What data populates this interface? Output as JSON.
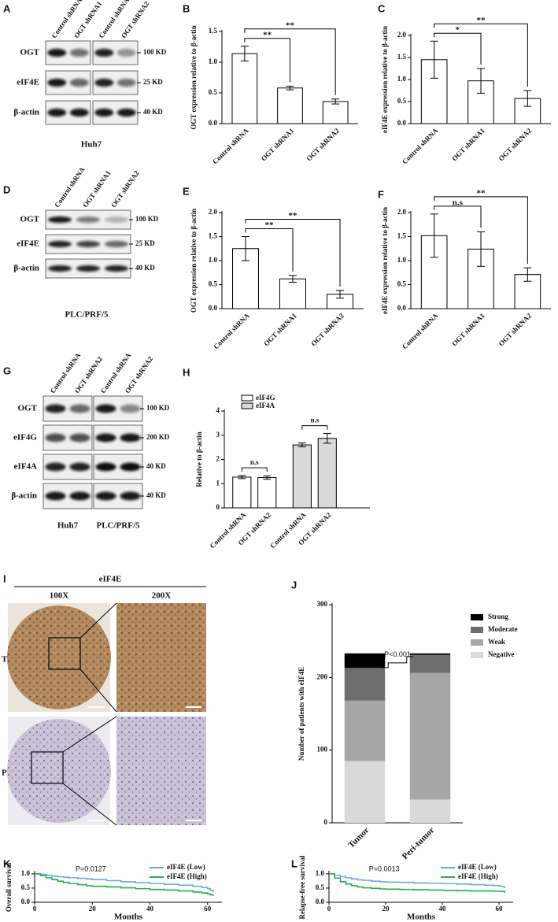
{
  "chart_data": [
    {
      "type": "bar",
      "panel": "B",
      "ylabel": "OGT expression relative to β-actin",
      "categories": [
        "Control shRNA",
        "OGT shRNA1",
        "OGT shRNA2"
      ],
      "values": [
        1.14,
        0.58,
        0.36
      ],
      "errors": [
        0.12,
        0.03,
        0.04
      ],
      "color": "#ffffff",
      "ylim": [
        0,
        1.5
      ],
      "yticks": [
        {
          "value": 0,
          "label": "0.0"
        },
        0.5,
        {
          "value": 1,
          "label": "1.0"
        },
        1.5
      ],
      "significance": [
        "**",
        "**"
      ]
    },
    {
      "type": "bar",
      "panel": "C",
      "ylabel": "eIF4E expression relative to β-actin",
      "categories": [
        "Control shRNA",
        "OGT shRNA1",
        "OGT shRNA2"
      ],
      "values": [
        1.45,
        0.97,
        0.57
      ],
      "errors": [
        0.42,
        0.28,
        0.18
      ],
      "color": "#ffffff",
      "ylim": [
        0,
        2
      ],
      "yticks": [
        {
          "value": 0,
          "label": "0.0"
        },
        0.5,
        {
          "value": 1,
          "label": "1.0"
        },
        1.5,
        {
          "value": 2,
          "label": "2.0"
        }
      ],
      "significance": [
        "*",
        "**"
      ]
    },
    {
      "type": "bar",
      "panel": "E",
      "ylabel": "OGT expression relative to β-actin",
      "categories": [
        "Control shRNA",
        "OGT shRNA1",
        "OGT shRNA2"
      ],
      "values": [
        1.25,
        0.62,
        0.3
      ],
      "errors": [
        0.25,
        0.07,
        0.08
      ],
      "color": "#ffffff",
      "ylim": [
        0,
        2
      ],
      "yticks": [
        {
          "value": 0,
          "label": "0.0"
        },
        0.5,
        {
          "value": 1,
          "label": "1.0"
        },
        1.5,
        {
          "value": 2,
          "label": "2.0"
        }
      ],
      "significance": [
        "**",
        "**"
      ]
    },
    {
      "type": "bar",
      "panel": "F",
      "ylabel": "eIF4E expression relative to β-actin",
      "categories": [
        "Control shRNA",
        "OGT shRNA1",
        "OGT shRNA2"
      ],
      "values": [
        1.52,
        1.24,
        0.71
      ],
      "errors": [
        0.45,
        0.36,
        0.14
      ],
      "color": "#ffffff",
      "ylim": [
        0,
        2
      ],
      "yticks": [
        {
          "value": 0,
          "label": "0.0"
        },
        0.5,
        {
          "value": 1,
          "label": "1.0"
        },
        1.5,
        {
          "value": 2,
          "label": "2.0"
        }
      ],
      "significance": [
        "n.s",
        "**"
      ]
    },
    {
      "type": "grouped_bar",
      "panel": "H",
      "ylabel": "Relative to β-actin",
      "categories": [
        "Control shRNA",
        "OGT shRNA2",
        "Control shRNA",
        "OGT shRNA2"
      ],
      "series": [
        {
          "name": "eIF4G",
          "color": "#ffffff",
          "values": [
            1.27,
            1.25,
            null,
            null
          ],
          "errors": [
            0.06,
            0.07,
            null,
            null
          ]
        },
        {
          "name": "eIF4A",
          "color": "#d9d9d9",
          "values": [
            null,
            null,
            2.6,
            2.87
          ],
          "errors": [
            null,
            null,
            0.08,
            0.2
          ]
        }
      ],
      "ylim": [
        0,
        4
      ],
      "yticks": [
        0,
        1,
        2,
        3,
        4
      ],
      "significance": [
        "n.s",
        "n.s"
      ]
    },
    {
      "type": "stacked_bar",
      "panel": "J",
      "ylabel": "Number of patients with eIF4E",
      "categories": [
        "Tumor",
        "Peri-tumor"
      ],
      "series": [
        {
          "name": "Negative",
          "color": "#d9d9d9",
          "values": [
            85,
            32
          ]
        },
        {
          "name": "Weak",
          "color": "#a6a6a6",
          "values": [
            83,
            174
          ]
        },
        {
          "name": "Moderate",
          "color": "#6e6e6e",
          "values": [
            45,
            25
          ]
        },
        {
          "name": "Strong",
          "color": "#000000",
          "values": [
            20,
            2
          ]
        }
      ],
      "ylim": [
        0,
        300
      ],
      "yticks": [
        0,
        100,
        200,
        300
      ],
      "annotation": "P<0.001"
    },
    {
      "type": "line",
      "step": true,
      "panel": "K",
      "ylabel": "Overall survival",
      "xlabel": "Months",
      "annotation": "P=0.0127",
      "x": [
        0,
        2,
        4,
        6,
        8,
        10,
        12,
        15,
        18,
        20,
        25,
        30,
        35,
        40,
        45,
        50,
        55,
        58,
        60,
        61,
        62
      ],
      "series": [
        {
          "name": "eIF4E (Low)",
          "color": "#6fa8dc",
          "values": [
            1.0,
            0.98,
            0.95,
            0.92,
            0.9,
            0.88,
            0.86,
            0.84,
            0.82,
            0.8,
            0.76,
            0.72,
            0.69,
            0.66,
            0.63,
            0.6,
            0.56,
            0.52,
            0.48,
            0.42,
            0.35
          ]
        },
        {
          "name": "eIF4E (High)",
          "color": "#22b14c",
          "values": [
            1.0,
            0.94,
            0.86,
            0.8,
            0.74,
            0.7,
            0.66,
            0.62,
            0.58,
            0.56,
            0.54,
            0.51,
            0.48,
            0.45,
            0.43,
            0.4,
            0.36,
            0.33,
            0.3,
            0.26,
            0.23
          ]
        }
      ],
      "xlim": [
        0,
        65
      ],
      "xticks": [
        0,
        20,
        40,
        60
      ],
      "ylim": [
        0,
        1.05
      ],
      "yticks": [
        {
          "value": 0,
          "label": "0.0"
        },
        0.5,
        {
          "value": 1,
          "label": "1.0"
        }
      ]
    },
    {
      "type": "line",
      "step": true,
      "panel": "L",
      "ylabel": "Relapse-free survival",
      "xlabel": "Months",
      "annotation": "P=0.0013",
      "x": [
        0,
        2,
        4,
        6,
        8,
        10,
        12,
        15,
        18,
        20,
        25,
        30,
        35,
        40,
        45,
        50,
        55,
        58,
        60,
        61,
        62
      ],
      "series": [
        {
          "name": "eIF4E (Low)",
          "color": "#6fa8dc",
          "values": [
            1.0,
            0.95,
            0.9,
            0.86,
            0.82,
            0.79,
            0.77,
            0.74,
            0.72,
            0.71,
            0.7,
            0.68,
            0.67,
            0.66,
            0.64,
            0.62,
            0.6,
            0.59,
            0.57,
            0.55,
            0.5
          ]
        },
        {
          "name": "eIF4E (High)",
          "color": "#22b14c",
          "values": [
            1.0,
            0.85,
            0.72,
            0.64,
            0.58,
            0.54,
            0.51,
            0.49,
            0.47,
            0.46,
            0.45,
            0.44,
            0.43,
            0.42,
            0.41,
            0.4,
            0.4,
            0.39,
            0.39,
            0.38,
            0.33
          ]
        }
      ],
      "xlim": [
        0,
        65
      ],
      "xticks": [
        0,
        20,
        40,
        60
      ],
      "ylim": [
        0,
        1.05
      ],
      "yticks": [
        {
          "value": 0,
          "label": "0.0"
        },
        0.5,
        {
          "value": 1,
          "label": "1.0"
        }
      ]
    }
  ],
  "blots": [
    {
      "panel": "A",
      "lanes": [
        "Control shRNA",
        "OGT shRNA1",
        "Control shRNA",
        "OGT shRNA2"
      ],
      "rows": [
        {
          "name": "OGT",
          "size": "100 KD"
        },
        {
          "name": "eIF4E",
          "size": "25 KD"
        },
        {
          "name": "β-actin",
          "size": "40 KD"
        }
      ],
      "cell_lines": [
        "Huh7"
      ]
    },
    {
      "panel": "D",
      "lanes": [
        "Control shRNA",
        "OGT shRNA1",
        "OGT shRNA2"
      ],
      "rows": [
        {
          "name": "OGT",
          "size": "100 KD"
        },
        {
          "name": "eIF4E",
          "size": "25 KD"
        },
        {
          "name": "β-actin",
          "size": "40 KD"
        }
      ],
      "cell_lines": [
        "PLC/PRF/5"
      ]
    },
    {
      "panel": "G",
      "lanes": [
        "Control shRNA",
        "OGT shRNA2",
        "Control shRNA",
        "OGT shRNA2"
      ],
      "rows": [
        {
          "name": "OGT",
          "size": "100 KD"
        },
        {
          "name": "eIF4G",
          "size": "200 KD"
        },
        {
          "name": "eIF4A",
          "size": "40 KD"
        },
        {
          "name": "β-actin",
          "size": "40 KD"
        }
      ],
      "cell_lines": [
        "Huh7",
        "PLC/PRF/5"
      ]
    }
  ],
  "ihc": {
    "panel": "I",
    "stain": "eIF4E",
    "magnifications": [
      "100X",
      "200X"
    ],
    "rows": [
      "T",
      "P"
    ]
  }
}
